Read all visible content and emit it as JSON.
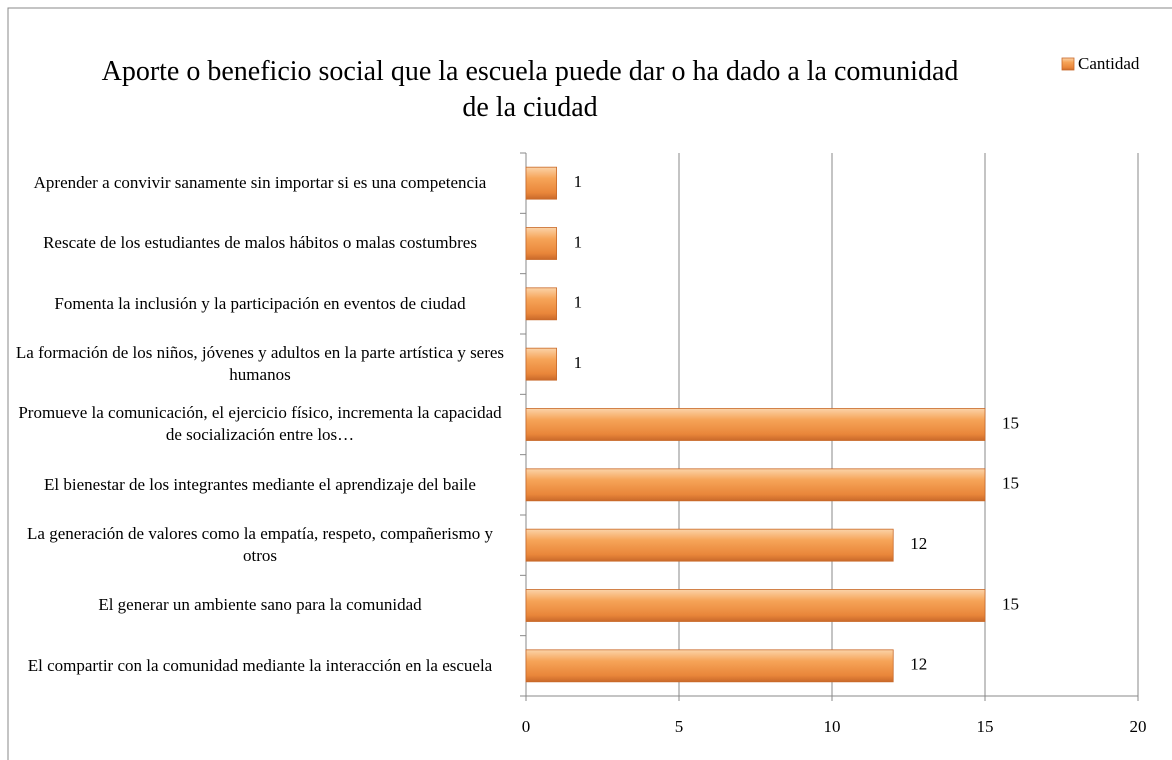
{
  "chart_data": {
    "type": "barh",
    "title": "Aporte o beneficio social que la escuela puede dar o ha dado a la comunidad de la ciudad",
    "categories": [
      "Aprender a convivir sanamente sin importar si es una competencia",
      "Rescate de los estudiantes de malos hábitos o malas costumbres",
      "Fomenta la inclusión y la participación en eventos de ciudad",
      "La formación de los niños, jóvenes y adultos en la parte artística y seres humanos",
      "Promueve la comunicación, el ejercicio físico, incrementa la capacidad de socialización entre los…",
      "El bienestar de los integrantes mediante el aprendizaje del baile",
      "La generación de valores como la empatía, respeto, compañerismo y otros",
      "El generar un ambiente sano para la comunidad",
      "El compartir con la comunidad mediante la interacción en la escuela"
    ],
    "series": [
      {
        "name": "Cantidad",
        "color": "#f39a4a",
        "values": [
          1,
          1,
          1,
          1,
          15,
          15,
          12,
          15,
          12
        ]
      }
    ],
    "xlim": [
      0,
      20
    ],
    "xticks": [
      0,
      5,
      10,
      15,
      20
    ],
    "grid": true,
    "legend": "top-right"
  }
}
